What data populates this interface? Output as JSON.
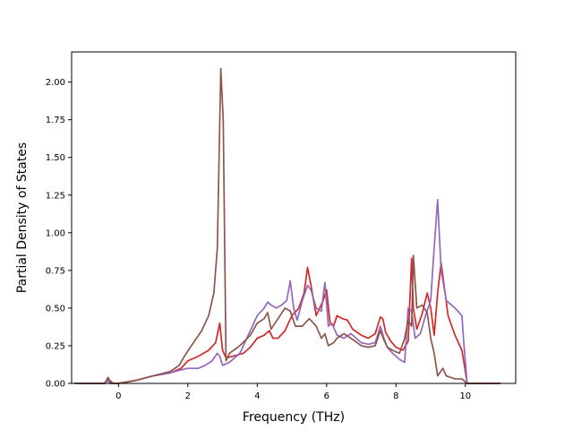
{
  "chart_data": {
    "type": "line",
    "title": "",
    "xlabel": "Frequency (THz)",
    "ylabel": "Partial Density of States",
    "xlim": [
      -1.35,
      11.45
    ],
    "ylim": [
      0,
      2.2
    ],
    "xticks": [
      0,
      2,
      4,
      6,
      8,
      10
    ],
    "xtick_labels": [
      "0",
      "2",
      "4",
      "6",
      "8",
      "10"
    ],
    "yticks": [
      0.0,
      0.25,
      0.5,
      0.75,
      1.0,
      1.25,
      1.5,
      1.75,
      2.0
    ],
    "ytick_labels": [
      "0.00",
      "0.25",
      "0.50",
      "0.75",
      "1.00",
      "1.25",
      "1.50",
      "1.75",
      "2.00"
    ],
    "grid": false,
    "legend": "none",
    "series": [
      {
        "color": "#d62728",
        "x": [
          -1.25,
          -0.4,
          -0.3,
          -0.25,
          -0.15,
          0.0,
          0.5,
          1.0,
          1.5,
          1.8,
          2.0,
          2.3,
          2.6,
          2.8,
          2.92,
          3.0,
          3.1,
          3.3,
          3.6,
          3.8,
          4.0,
          4.2,
          4.35,
          4.45,
          4.6,
          4.8,
          5.0,
          5.2,
          5.35,
          5.45,
          5.55,
          5.7,
          5.9,
          6.0,
          6.1,
          6.2,
          6.3,
          6.45,
          6.6,
          6.75,
          7.0,
          7.2,
          7.4,
          7.55,
          7.62,
          7.7,
          7.85,
          8.0,
          8.2,
          8.35,
          8.45,
          8.5,
          8.6,
          8.75,
          8.9,
          9.0,
          9.1,
          9.2,
          9.3,
          9.5,
          9.7,
          9.9,
          10.0,
          10.05,
          11.0
        ],
        "y": [
          0.0,
          0.0,
          0.03,
          0.01,
          0.0,
          0.0,
          0.02,
          0.05,
          0.07,
          0.1,
          0.15,
          0.18,
          0.22,
          0.27,
          0.4,
          0.22,
          0.17,
          0.18,
          0.2,
          0.24,
          0.3,
          0.32,
          0.35,
          0.3,
          0.3,
          0.35,
          0.45,
          0.5,
          0.6,
          0.77,
          0.65,
          0.45,
          0.55,
          0.62,
          0.4,
          0.38,
          0.45,
          0.43,
          0.42,
          0.36,
          0.32,
          0.3,
          0.33,
          0.44,
          0.43,
          0.34,
          0.28,
          0.24,
          0.22,
          0.28,
          0.83,
          0.5,
          0.36,
          0.46,
          0.6,
          0.5,
          0.32,
          0.6,
          0.8,
          0.45,
          0.32,
          0.22,
          0.08,
          0.0,
          0.0
        ]
      },
      {
        "color": "#9467bd",
        "x": [
          -1.25,
          -0.4,
          -0.3,
          -0.25,
          -0.15,
          0.0,
          0.5,
          1.0,
          1.5,
          1.8,
          2.0,
          2.3,
          2.5,
          2.7,
          2.85,
          2.92,
          3.0,
          3.2,
          3.5,
          3.8,
          4.0,
          4.2,
          4.3,
          4.4,
          4.55,
          4.7,
          4.85,
          4.95,
          5.05,
          5.15,
          5.3,
          5.45,
          5.55,
          5.7,
          5.85,
          5.95,
          6.05,
          6.15,
          6.3,
          6.5,
          6.7,
          7.0,
          7.2,
          7.4,
          7.55,
          7.65,
          7.75,
          7.9,
          8.1,
          8.25,
          8.35,
          8.45,
          8.55,
          8.7,
          8.85,
          9.0,
          9.1,
          9.2,
          9.3,
          9.45,
          9.7,
          9.9,
          9.95,
          10.05,
          11.0
        ],
        "y": [
          0.0,
          0.0,
          0.02,
          0.0,
          0.0,
          0.0,
          0.02,
          0.05,
          0.07,
          0.09,
          0.1,
          0.1,
          0.12,
          0.15,
          0.2,
          0.18,
          0.12,
          0.14,
          0.2,
          0.35,
          0.45,
          0.5,
          0.54,
          0.52,
          0.5,
          0.52,
          0.55,
          0.68,
          0.5,
          0.42,
          0.55,
          0.65,
          0.62,
          0.5,
          0.48,
          0.67,
          0.38,
          0.4,
          0.32,
          0.3,
          0.33,
          0.27,
          0.26,
          0.27,
          0.38,
          0.3,
          0.24,
          0.2,
          0.16,
          0.14,
          0.5,
          0.48,
          0.3,
          0.33,
          0.45,
          0.55,
          0.9,
          1.22,
          0.75,
          0.55,
          0.5,
          0.45,
          0.28,
          0.0,
          0.0
        ]
      },
      {
        "color": "#8c564b",
        "x": [
          -1.25,
          -0.4,
          -0.3,
          -0.25,
          -0.15,
          0.0,
          0.5,
          1.0,
          1.5,
          1.75,
          1.9,
          2.1,
          2.4,
          2.6,
          2.75,
          2.85,
          2.9,
          2.95,
          3.02,
          3.1,
          3.2,
          3.5,
          3.8,
          4.0,
          4.2,
          4.3,
          4.4,
          4.6,
          4.8,
          4.95,
          5.1,
          5.3,
          5.5,
          5.7,
          5.85,
          5.95,
          6.05,
          6.2,
          6.3,
          6.5,
          6.7,
          7.0,
          7.2,
          7.4,
          7.55,
          7.65,
          7.75,
          7.9,
          8.1,
          8.25,
          8.35,
          8.45,
          8.5,
          8.6,
          8.75,
          8.9,
          9.0,
          9.1,
          9.2,
          9.35,
          9.45,
          9.7,
          9.9,
          10.05,
          11.0
        ],
        "y": [
          0.0,
          0.0,
          0.04,
          0.02,
          0.0,
          0.0,
          0.02,
          0.05,
          0.08,
          0.12,
          0.18,
          0.25,
          0.35,
          0.45,
          0.6,
          0.9,
          1.5,
          2.09,
          1.75,
          0.15,
          0.2,
          0.25,
          0.32,
          0.4,
          0.43,
          0.47,
          0.36,
          0.43,
          0.5,
          0.48,
          0.38,
          0.38,
          0.43,
          0.38,
          0.3,
          0.33,
          0.25,
          0.27,
          0.3,
          0.33,
          0.3,
          0.25,
          0.24,
          0.25,
          0.35,
          0.29,
          0.24,
          0.22,
          0.2,
          0.3,
          0.42,
          0.38,
          0.85,
          0.5,
          0.52,
          0.47,
          0.3,
          0.2,
          0.05,
          0.1,
          0.05,
          0.03,
          0.03,
          0.0,
          0.0
        ]
      }
    ]
  }
}
